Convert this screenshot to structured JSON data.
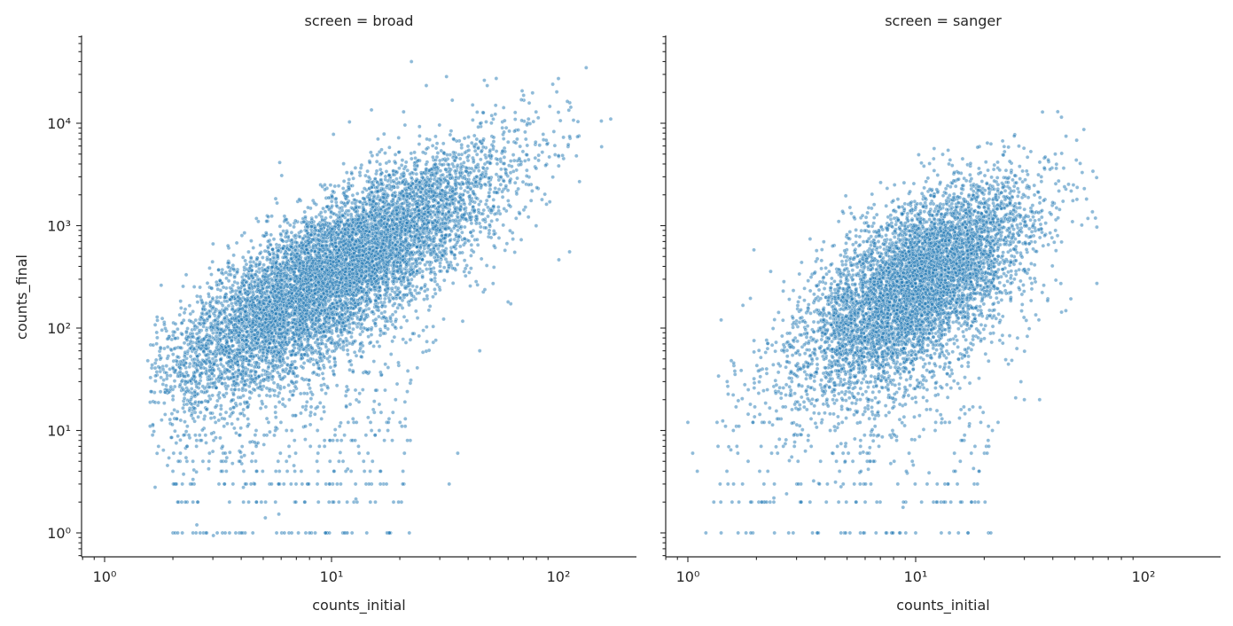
{
  "chart_data": [
    {
      "type": "scatter",
      "title": "screen = broad",
      "xlabel": "counts_initial",
      "ylabel": "counts_final",
      "xscale": "log",
      "yscale": "log",
      "xlim": [
        0.8,
        210
      ],
      "ylim": [
        0.6,
        70000
      ],
      "xticks": [
        1,
        10,
        100
      ],
      "xticklabels": [
        "10⁰",
        "10¹",
        "10²"
      ],
      "yticks": [
        1,
        10,
        100,
        1000,
        10000
      ],
      "yticklabels": [
        "10⁰",
        "10¹",
        "10²",
        "10³",
        "10⁴"
      ],
      "color": "#1f77b4",
      "grid": false,
      "cloud": {
        "n_points": 9000,
        "center_log10": [
          1.0,
          2.55
        ],
        "slope": 1.3,
        "spread_log10": [
          0.36,
          0.34
        ],
        "x_range_log10": [
          0.2,
          2.2
        ],
        "low_count_points": 320
      },
      "points": [
        [
          22.5,
          40000
        ],
        [
          15,
          13500
        ],
        [
          12,
          10300
        ],
        [
          100,
          12800
        ],
        [
          170,
          11000
        ],
        [
          10.2,
          7800
        ],
        [
          155,
          5900
        ],
        [
          120,
          4800
        ],
        [
          60,
          180
        ],
        [
          33,
          3
        ],
        [
          36,
          6
        ],
        [
          45,
          60
        ],
        [
          18,
          5800
        ],
        [
          1.55,
          48
        ],
        [
          1.6,
          24
        ],
        [
          2.1,
          1
        ],
        [
          2.2,
          1
        ],
        [
          2.8,
          1
        ],
        [
          3.4,
          1
        ],
        [
          4.5,
          1
        ],
        [
          6.2,
          1
        ],
        [
          7.7,
          1
        ],
        [
          9.4,
          1
        ],
        [
          11.4,
          1
        ],
        [
          14.3,
          1
        ],
        [
          18,
          1
        ],
        [
          2.0,
          4
        ],
        [
          2.1,
          2
        ],
        [
          2.2,
          3
        ],
        [
          2.9,
          6
        ]
      ]
    },
    {
      "type": "scatter",
      "title": "screen = sanger",
      "xlabel": "counts_initial",
      "ylabel": "",
      "xscale": "log",
      "yscale": "log",
      "xlim": [
        0.8,
        210
      ],
      "ylim": [
        0.6,
        70000
      ],
      "xticks": [
        1,
        10,
        100
      ],
      "xticklabels": [
        "10⁰",
        "10¹",
        "10²"
      ],
      "color": "#1f77b4",
      "grid": false,
      "cloud": {
        "n_points": 6500,
        "center_log10": [
          1.0,
          2.45
        ],
        "slope": 1.25,
        "spread_log10": [
          0.25,
          0.38
        ],
        "x_range_log10": [
          0.02,
          1.8
        ],
        "low_count_points": 260
      },
      "points": [
        [
          41,
          5000
        ],
        [
          60,
          3400
        ],
        [
          55,
          2300
        ],
        [
          45,
          2400
        ],
        [
          12,
          4500
        ],
        [
          14,
          4000
        ],
        [
          28,
          80
        ],
        [
          1.95,
          580
        ],
        [
          1.0,
          12
        ],
        [
          1.05,
          6
        ],
        [
          1.2,
          1
        ],
        [
          1.4,
          1
        ],
        [
          1.8,
          1
        ],
        [
          2.4,
          1
        ],
        [
          2.9,
          1
        ],
        [
          3.7,
          1
        ],
        [
          4.7,
          1
        ],
        [
          5.9,
          1
        ],
        [
          6.7,
          1
        ],
        [
          8.5,
          1
        ],
        [
          10,
          1
        ],
        [
          1.3,
          2
        ],
        [
          1.5,
          3
        ],
        [
          1.1,
          4
        ],
        [
          19,
          4
        ],
        [
          16,
          8
        ],
        [
          23,
          12
        ],
        [
          30,
          20
        ],
        [
          35,
          20
        ],
        [
          1.4,
          120
        ]
      ]
    }
  ]
}
